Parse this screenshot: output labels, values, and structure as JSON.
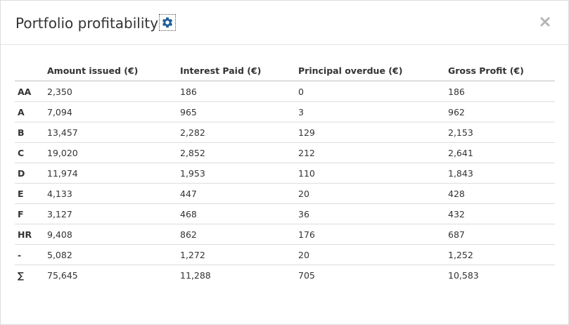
{
  "modal": {
    "title": "Portfolio profitability",
    "settings_icon": "gear-icon",
    "close_icon": "close-icon",
    "close_glyph": "✖"
  },
  "table": {
    "headers": [
      "",
      "Amount issued (€)",
      "Interest Paid (€)",
      "Principal overdue (€)",
      "Gross Profit (€)"
    ],
    "rows": [
      {
        "label": "AA",
        "amount_issued": "2,350",
        "interest_paid": "186",
        "principal_overdue": "0",
        "gross_profit": "186"
      },
      {
        "label": "A",
        "amount_issued": "7,094",
        "interest_paid": "965",
        "principal_overdue": "3",
        "gross_profit": "962"
      },
      {
        "label": "B",
        "amount_issued": "13,457",
        "interest_paid": "2,282",
        "principal_overdue": "129",
        "gross_profit": "2,153"
      },
      {
        "label": "C",
        "amount_issued": "19,020",
        "interest_paid": "2,852",
        "principal_overdue": "212",
        "gross_profit": "2,641"
      },
      {
        "label": "D",
        "amount_issued": "11,974",
        "interest_paid": "1,953",
        "principal_overdue": "110",
        "gross_profit": "1,843"
      },
      {
        "label": "E",
        "amount_issued": "4,133",
        "interest_paid": "447",
        "principal_overdue": "20",
        "gross_profit": "428"
      },
      {
        "label": "F",
        "amount_issued": "3,127",
        "interest_paid": "468",
        "principal_overdue": "36",
        "gross_profit": "432"
      },
      {
        "label": "HR",
        "amount_issued": "9,408",
        "interest_paid": "862",
        "principal_overdue": "176",
        "gross_profit": "687"
      },
      {
        "label": "-",
        "amount_issued": "5,082",
        "interest_paid": "1,272",
        "principal_overdue": "20",
        "gross_profit": "1,252"
      },
      {
        "label": "∑",
        "amount_issued": "75,645",
        "interest_paid": "11,288",
        "principal_overdue": "705",
        "gross_profit": "10,583"
      }
    ]
  },
  "colors": {
    "gear": "#1f5f99",
    "close": "#b5b5b5",
    "border": "#dddddd"
  }
}
